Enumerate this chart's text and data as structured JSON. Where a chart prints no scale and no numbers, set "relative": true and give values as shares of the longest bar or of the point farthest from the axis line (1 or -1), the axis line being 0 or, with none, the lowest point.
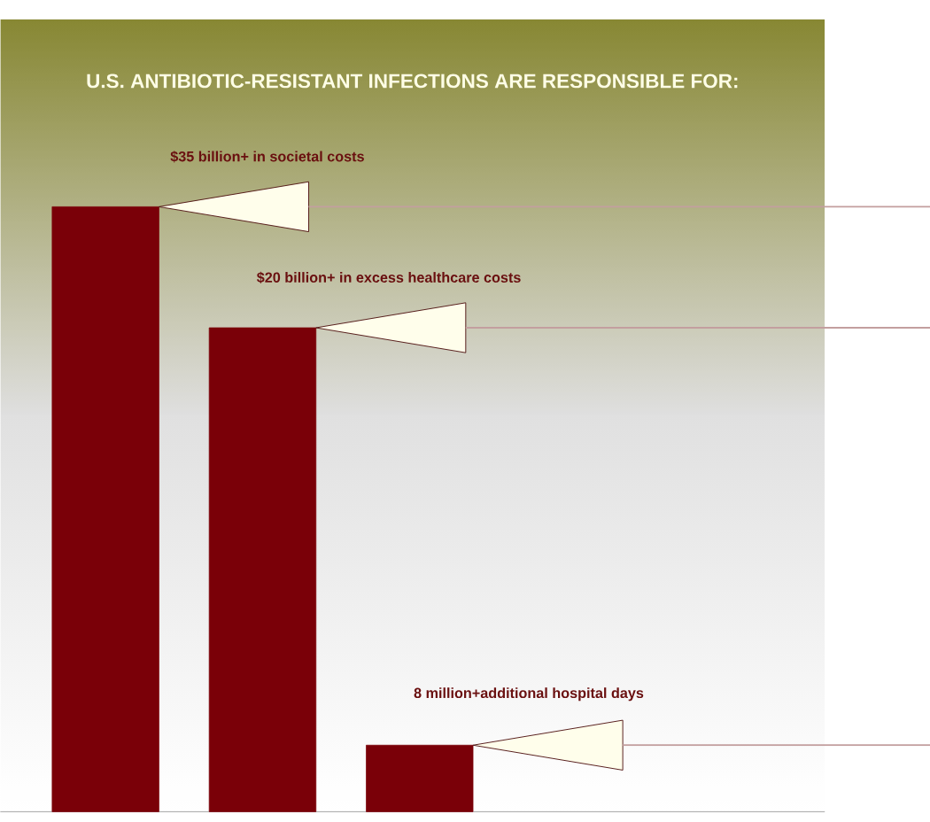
{
  "chart_data": {
    "type": "bar",
    "title": "U.S. ANTIBIOTIC-RESISTANT INFECTIONS ARE RESPONSIBLE FOR:",
    "categories": [
      null,
      null,
      null
    ],
    "values": [
      1,
      0.8,
      0.11
    ],
    "relative": true,
    "color": "#7a0008",
    "annotations": [
      "$35 billion+ in societal costs",
      "$20 billion+ in excess healthcare costs",
      "8 million+additional hospital days"
    ]
  }
}
